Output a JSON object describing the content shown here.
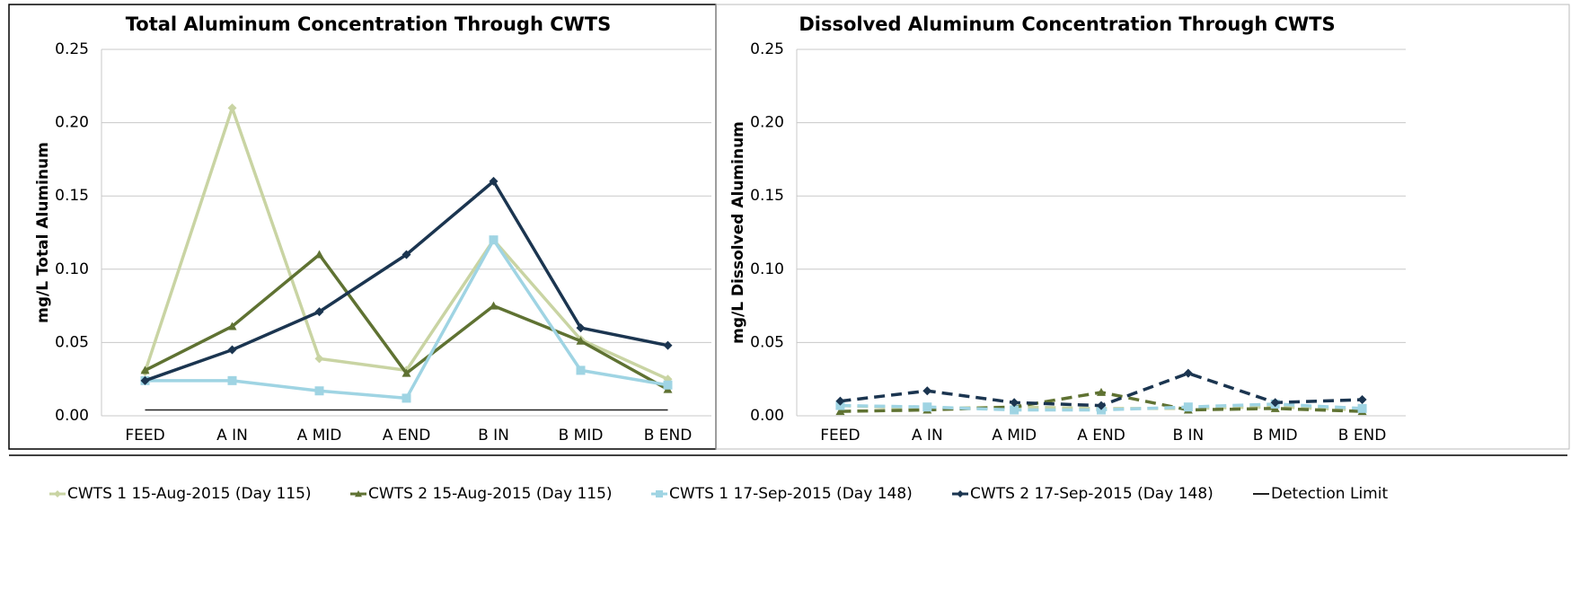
{
  "chart_data": [
    {
      "type": "line",
      "title": "Total Aluminum Concentration Through CWTS",
      "y_label": "mg/L Total Aluminum",
      "categories": [
        "FEED",
        "A IN",
        "A MID",
        "A END",
        "B IN",
        "B MID",
        "B END"
      ],
      "ylim": [
        0,
        0.25
      ],
      "yticks": [
        {
          "value": 0,
          "label": "0.00"
        },
        0.05,
        {
          "value": 0.1,
          "label": "0.10"
        },
        0.15,
        {
          "value": 0.2,
          "label": "0.20"
        },
        0.25
      ],
      "grid": true,
      "line_style": "solid",
      "series": [
        {
          "name": "CWTS 1 15-Aug-2015 (Day 115)",
          "color": "#c9d4a3",
          "marker": "diamond",
          "values": [
            0.03,
            0.21,
            0.039,
            0.031,
            0.12,
            0.052,
            0.025
          ]
        },
        {
          "name": "CWTS 2 15-Aug-2015 (Day 115)",
          "color": "#5f7232",
          "marker": "triangle",
          "values": [
            0.031,
            0.061,
            0.11,
            0.029,
            0.075,
            0.051,
            0.018
          ]
        },
        {
          "name": "CWTS 1 17-Sep-2015 (Day 148)",
          "color": "#9fd4e3",
          "marker": "square",
          "values": [
            0.024,
            0.024,
            0.017,
            0.012,
            0.12,
            0.031,
            0.021
          ]
        },
        {
          "name": "CWTS 2 17-Sep-2015 (Day 148)",
          "color": "#1b3550",
          "marker": "diamond",
          "values": [
            0.024,
            0.045,
            0.071,
            0.11,
            0.16,
            0.06,
            0.048
          ]
        },
        {
          "name": "Detection Limit",
          "color": "#222222",
          "marker": "none",
          "values": [
            0.004,
            0.004,
            0.004,
            0.004,
            0.004,
            0.004,
            0.004
          ]
        }
      ]
    },
    {
      "type": "line",
      "title": "Dissolved Aluminum Concentration Through CWTS",
      "y_label": "mg/L Dissolved Aluminum",
      "categories": [
        "FEED",
        "A IN",
        "A MID",
        "A END",
        "B IN",
        "B MID",
        "B END"
      ],
      "ylim": [
        0,
        0.25
      ],
      "yticks": [
        {
          "value": 0,
          "label": "0.00"
        },
        0.05,
        {
          "value": 0.1,
          "label": "0.10"
        },
        0.15,
        {
          "value": 0.2,
          "label": "0.20"
        },
        0.25
      ],
      "grid": true,
      "line_style": "dashed",
      "series": [
        {
          "color": "#c9d4a3",
          "marker": "diamond",
          "values": [
            0.007,
            0.005,
            0.006,
            0.005,
            0.005,
            0.006,
            0.004
          ]
        },
        {
          "color": "#5f7232",
          "marker": "triangle",
          "values": [
            0.003,
            0.004,
            0.006,
            0.016,
            0.004,
            0.005,
            0.003
          ]
        },
        {
          "color": "#9fd4e3",
          "marker": "square",
          "values": [
            0.007,
            0.006,
            0.004,
            0.004,
            0.006,
            0.008,
            0.005
          ]
        },
        {
          "color": "#1b3550",
          "marker": "diamond",
          "values": [
            0.01,
            0.017,
            0.009,
            0.007,
            0.029,
            0.009,
            0.011
          ]
        }
      ]
    }
  ]
}
